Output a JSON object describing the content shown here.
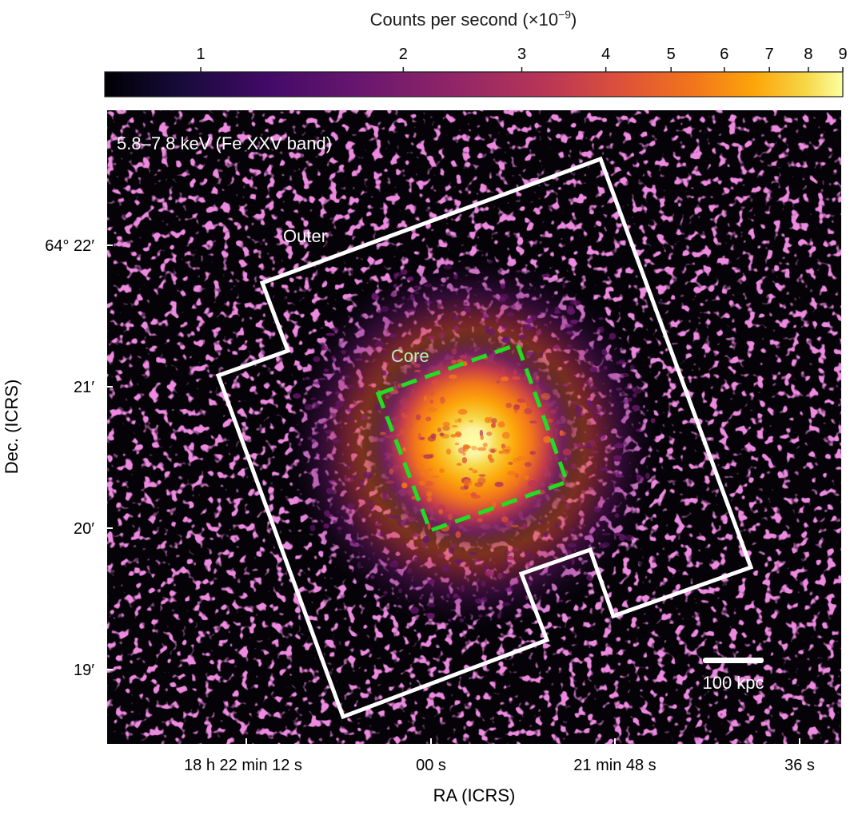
{
  "colorbar": {
    "title_text": "Counts per second (×10",
    "title_exp": "−9",
    "title_close": ")",
    "ticks": [
      "1",
      "2",
      "3",
      "4",
      "5",
      "6",
      "7",
      "8",
      "9"
    ],
    "scale": "log",
    "colormap": "inferno"
  },
  "image": {
    "band_label": "5.8–7.8 keV (Fe XXV band)",
    "region_outer_label": "Outer",
    "region_core_label": "Core",
    "scale_bar_label": "100 kpc",
    "colors": {
      "outer": "#ffffff",
      "core": "#22dd22",
      "background": "#050208"
    }
  },
  "axes": {
    "xlabel": "RA (ICRS)",
    "ylabel": "Dec. (ICRS)",
    "x_ticks": [
      "18 h 22 min 12 s",
      "00 s",
      "21 min 48 s",
      "36 s"
    ],
    "y_ticks": [
      "64° 22′",
      "21′",
      "20′",
      "19′"
    ]
  }
}
